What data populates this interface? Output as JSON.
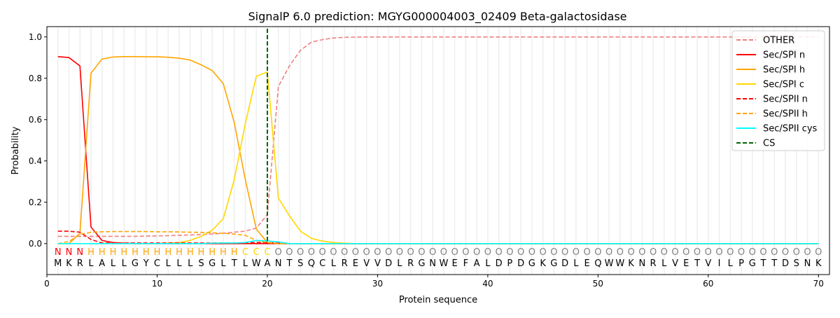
{
  "chart_data": {
    "type": "line",
    "title": "SignalP 6.0 prediction: MGYG000004003_02409 Beta-galactosidase",
    "xlabel": "Protein sequence",
    "ylabel": "Probability",
    "xlim": [
      0,
      71
    ],
    "ylim": [
      -0.15,
      1.05
    ],
    "xticks": [
      0,
      10,
      20,
      30,
      40,
      50,
      60,
      70
    ],
    "yticks": [
      0.0,
      0.2,
      0.4,
      0.6,
      0.8,
      1.0
    ],
    "ytick_labels": [
      "0.0",
      "0.2",
      "0.4",
      "0.6",
      "0.8",
      "1.0"
    ],
    "legend_position": "top-right",
    "sequence": [
      "M",
      "K",
      "R",
      "L",
      "A",
      "L",
      "L",
      "G",
      "Y",
      "C",
      "L",
      "L",
      "L",
      "S",
      "G",
      "L",
      "T",
      "L",
      "W",
      "A",
      "N",
      "T",
      "S",
      "Q",
      "C",
      "L",
      "R",
      "E",
      "V",
      "V",
      "D",
      "L",
      "R",
      "G",
      "N",
      "W",
      "E",
      "F",
      "A",
      "L",
      "D",
      "P",
      "D",
      "G",
      "K",
      "G",
      "D",
      "L",
      "E",
      "Q",
      "W",
      "W",
      "K",
      "N",
      "R",
      "L",
      "V",
      "E",
      "T",
      "V",
      "I",
      "L",
      "P",
      "G",
      "T",
      "T",
      "D",
      "S",
      "N",
      "K"
    ],
    "labels": [
      "N",
      "N",
      "N",
      "H",
      "H",
      "H",
      "H",
      "H",
      "H",
      "H",
      "H",
      "H",
      "H",
      "H",
      "H",
      "H",
      "H",
      "C",
      "C",
      "C",
      "O",
      "O",
      "O",
      "O",
      "O",
      "O",
      "O",
      "O",
      "O",
      "O",
      "O",
      "O",
      "O",
      "O",
      "O",
      "O",
      "O",
      "O",
      "O",
      "O",
      "O",
      "O",
      "O",
      "O",
      "O",
      "O",
      "O",
      "O",
      "O",
      "O",
      "O",
      "O",
      "O",
      "O",
      "O",
      "O",
      "O",
      "O",
      "O",
      "O",
      "O",
      "O",
      "O",
      "O",
      "O",
      "O",
      "O",
      "O",
      "O",
      "O"
    ],
    "label_colors": {
      "N": "#ff0000",
      "H": "#ffa500",
      "C": "#ffd700",
      "O": "#808080"
    },
    "cleavage_site": 20,
    "series": [
      {
        "name": "OTHER",
        "color": "#f08080",
        "dash": true,
        "values": {
          "1": 0.035,
          "2": 0.035,
          "3": 0.035,
          "4": 0.035,
          "5": 0.035,
          "6": 0.035,
          "7": 0.035,
          "8": 0.035,
          "9": 0.036,
          "10": 0.037,
          "11": 0.038,
          "12": 0.04,
          "13": 0.042,
          "14": 0.044,
          "15": 0.046,
          "16": 0.05,
          "17": 0.055,
          "18": 0.06,
          "19": 0.075,
          "20": 0.14,
          "21": 0.76,
          "22": 0.86,
          "23": 0.935,
          "24": 0.975,
          "25": 0.987,
          "26": 0.995,
          "27": 0.998,
          "28": 0.999,
          "rest": 1.0
        }
      },
      {
        "name": "Sec/SPI n",
        "color": "#ff0000",
        "dash": false,
        "values": {
          "1": 0.905,
          "2": 0.9,
          "3": 0.86,
          "4": 0.08,
          "5": 0.015,
          "6": 0.005,
          "7": 0.002,
          "rest": 0.0
        }
      },
      {
        "name": "Sec/SPI h",
        "color": "#ffa500",
        "dash": false,
        "values": {
          "1": 0.0,
          "2": 0.0,
          "3": 0.05,
          "4": 0.825,
          "5": 0.893,
          "6": 0.903,
          "7": 0.905,
          "8": 0.905,
          "9": 0.904,
          "10": 0.904,
          "11": 0.902,
          "12": 0.897,
          "13": 0.888,
          "14": 0.865,
          "15": 0.837,
          "16": 0.775,
          "17": 0.585,
          "18": 0.31,
          "19": 0.07,
          "20": 0.005,
          "rest": 0.0
        }
      },
      {
        "name": "Sec/SPI c",
        "color": "#ffd700",
        "dash": false,
        "values": {
          "1": 0.0,
          "11": 0.002,
          "12": 0.005,
          "13": 0.015,
          "14": 0.035,
          "15": 0.065,
          "16": 0.12,
          "17": 0.31,
          "18": 0.58,
          "19": 0.81,
          "20": 0.83,
          "21": 0.22,
          "22": 0.135,
          "23": 0.06,
          "24": 0.025,
          "25": 0.012,
          "26": 0.005,
          "27": 0.002,
          "rest": 0.0
        }
      },
      {
        "name": "Sec/SPII n",
        "color": "#ff0000",
        "dash": true,
        "values": {
          "1": 0.06,
          "2": 0.06,
          "3": 0.055,
          "4": 0.02,
          "5": 0.003,
          "18": 0.004,
          "19": 0.005,
          "20": 0.005,
          "21": 0.002,
          "rest": 0.0
        }
      },
      {
        "name": "Sec/SPII h",
        "color": "#ffa500",
        "dash": true,
        "values": {
          "1": 0.0,
          "2": 0.01,
          "3": 0.045,
          "4": 0.055,
          "5": 0.057,
          "6": 0.058,
          "7": 0.058,
          "8": 0.058,
          "9": 0.058,
          "10": 0.057,
          "11": 0.057,
          "12": 0.056,
          "13": 0.055,
          "14": 0.054,
          "15": 0.052,
          "16": 0.05,
          "17": 0.046,
          "18": 0.04,
          "19": 0.015,
          "20": 0.005,
          "rest": 0.0
        }
      },
      {
        "name": "Sec/SPII cys",
        "color": "#00ffff",
        "dash": false,
        "values": {
          "1": 0.0,
          "15": 0.002,
          "16": 0.003,
          "17": 0.003,
          "18": 0.005,
          "19": 0.015,
          "20": 0.013,
          "21": 0.008,
          "22": 0.0,
          "rest": 0.0
        }
      },
      {
        "name": "CS",
        "color": "#006400",
        "dash": true,
        "values": {}
      }
    ]
  }
}
